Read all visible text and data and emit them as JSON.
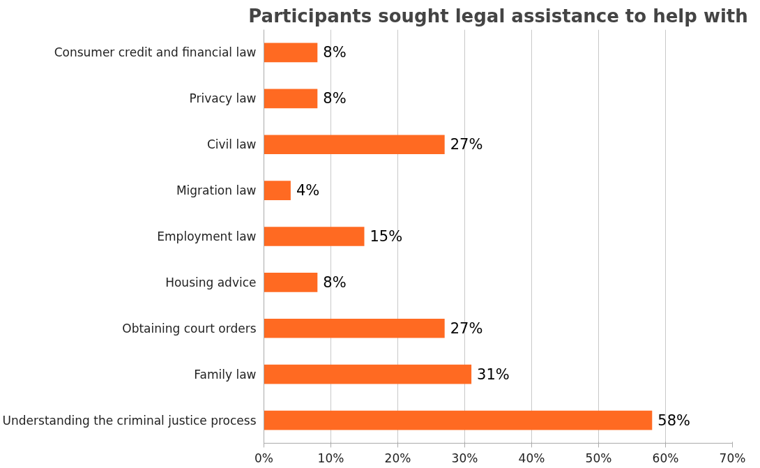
{
  "chart_data": {
    "type": "bar",
    "orientation": "horizontal",
    "title": "Participants sought legal assistance to help with",
    "categories": [
      "Consumer credit and financial law",
      "Privacy law",
      "Civil law",
      "Migration law",
      "Employment law",
      "Housing advice",
      "Obtaining court orders",
      "Family law",
      "Understanding the criminal justice process"
    ],
    "values": [
      8,
      8,
      27,
      4,
      15,
      8,
      27,
      31,
      58
    ],
    "value_labels": [
      "8%",
      "8%",
      "27%",
      "4%",
      "15%",
      "8%",
      "27%",
      "31%",
      "58%"
    ],
    "color": "#ff6a22",
    "xlim": [
      0,
      70
    ],
    "xticks": [
      {
        "value": 0,
        "label": "0%"
      },
      {
        "value": 10,
        "label": "10%"
      },
      {
        "value": 20,
        "label": "20%"
      },
      {
        "value": 30,
        "label": "30%"
      },
      {
        "value": 40,
        "label": "40%"
      },
      {
        "value": 50,
        "label": "50%"
      },
      {
        "value": 60,
        "label": "60%"
      },
      {
        "value": 70,
        "label": "70%"
      }
    ],
    "grid": "x",
    "legend": false
  }
}
